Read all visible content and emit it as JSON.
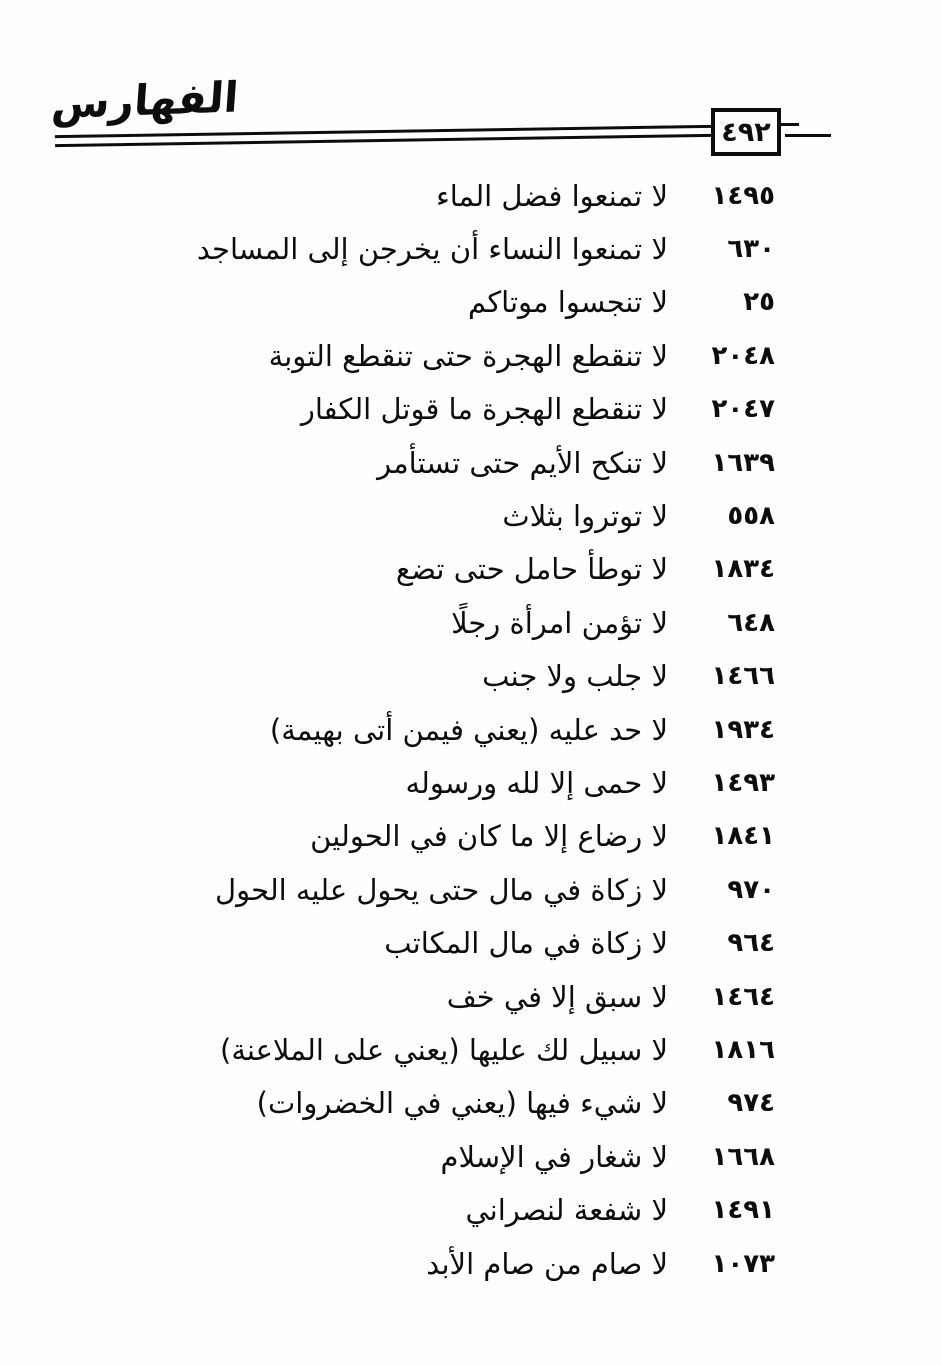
{
  "page": {
    "header": {
      "logo_text": "الفهارس",
      "page_number": "٤٩٢"
    },
    "entries": [
      {
        "number": "١٤٩٥",
        "text": "لا تمنعوا فضل الماء"
      },
      {
        "number": "٦٣٠",
        "text": "لا تمنعوا النساء أن يخرجن إلى المساجد"
      },
      {
        "number": "٢٥",
        "text": "لا تنجسوا موتاكم"
      },
      {
        "number": "٢٠٤٨",
        "text": "لا تنقطع الهجرة حتى تنقطع التوبة"
      },
      {
        "number": "٢٠٤٧",
        "text": "لا تنقطع الهجرة ما قوتل الكفار"
      },
      {
        "number": "١٦٣٩",
        "text": "لا تنكح الأيم حتى تستأمر"
      },
      {
        "number": "٥٥٨",
        "text": "لا توتروا بثلاث"
      },
      {
        "number": "١٨٣٤",
        "text": "لا توطأ حامل حتى تضع"
      },
      {
        "number": "٦٤٨",
        "text": "لا تؤمن امرأة رجلًا"
      },
      {
        "number": "١٤٦٦",
        "text": "لا جلب ولا جنب"
      },
      {
        "number": "١٩٣٤",
        "text": "لا حد عليه (يعني فيمن أتى بهيمة)"
      },
      {
        "number": "١٤٩٣",
        "text": "لا حمى إلا لله ورسوله"
      },
      {
        "number": "١٨٤١",
        "text": "لا رضاع إلا ما كان في الحولين"
      },
      {
        "number": "٩٧٠",
        "text": "لا زكاة في مال حتى يحول عليه الحول"
      },
      {
        "number": "٩٦٤",
        "text": "لا زكاة في مال المكاتب"
      },
      {
        "number": "١٤٦٤",
        "text": "لا سبق إلا في خف"
      },
      {
        "number": "١٨١٦",
        "text": "لا سبيل لك عليها (يعني على الملاعنة)"
      },
      {
        "number": "٩٧٤",
        "text": "لا شيء فيها (يعني في الخضروات)"
      },
      {
        "number": "١٦٦٨",
        "text": "لا شغار في الإسلام"
      },
      {
        "number": "١٤٩١",
        "text": "لا شفعة لنصراني"
      },
      {
        "number": "١٠٧٣",
        "text": "لا صام من صام الأبد"
      }
    ]
  }
}
